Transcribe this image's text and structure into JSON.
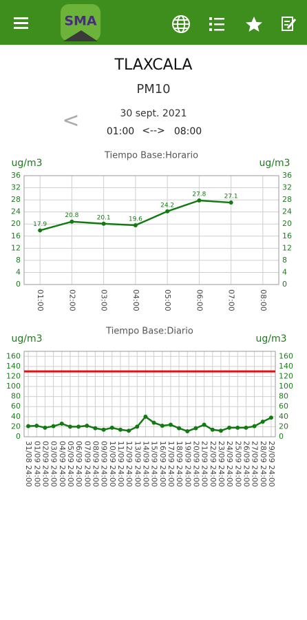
{
  "app_bar": {
    "logo_text": "SMA"
  },
  "station": "TLAXCALA",
  "pollutant": "PM10",
  "prev_button": "<",
  "date": "30 sept. 2021",
  "range": {
    "start": "01:00",
    "separator": "<-->",
    "end": "08:00"
  },
  "chart_data": [
    {
      "type": "line",
      "title": "Tiempo Base:Horario",
      "ylabel": "ug/m3",
      "y2label": "ug/m3",
      "categories": [
        "01:00",
        "02:00",
        "03:00",
        "04:00",
        "05:00",
        "06:00",
        "07:00",
        "08:00"
      ],
      "values": [
        17.9,
        20.8,
        20.1,
        19.6,
        24.2,
        27.8,
        27.1,
        null
      ],
      "color": "#137a13",
      "data_labels": true,
      "grid": true,
      "ylim": [
        0,
        36
      ],
      "yticks": [
        0,
        4,
        8,
        12,
        16,
        20,
        24,
        28,
        32,
        36
      ],
      "y2lim": [
        0,
        36
      ],
      "y2ticks": [
        0,
        4,
        8,
        12,
        16,
        20,
        24,
        28,
        32,
        36
      ]
    },
    {
      "type": "line",
      "title": "Tiempo Base:Diario",
      "ylabel": "ug/m3",
      "y2label": "ug/m3",
      "categories": [
        "31/08 24:00",
        "01/09 24:00",
        "02/09 24:00",
        "03/09 24:00",
        "04/09 24:00",
        "05/09 24:00",
        "06/09 24:00",
        "07/09 24:00",
        "08/09 24:00",
        "09/09 24:00",
        "10/09 24:00",
        "11/09 24:00",
        "12/09 24:00",
        "13/09 24:00",
        "14/09 24:00",
        "15/09 24:00",
        "16/09 24:00",
        "17/09 24:00",
        "18/09 24:00",
        "19/09 24:00",
        "20/09 24:00",
        "21/09 24:00",
        "22/09 24:00",
        "23/09 24:00",
        "24/09 24:00",
        "25/09 24:00",
        "26/09 24:00",
        "27/09 24:00",
        "28/09 24:00",
        "29/09 24:00"
      ],
      "values": [
        21,
        22,
        18,
        21,
        26,
        20,
        20,
        22,
        17,
        14,
        18,
        14,
        12,
        20,
        40,
        28,
        22,
        24,
        17,
        11,
        17,
        24,
        14,
        12,
        18,
        18,
        18,
        21,
        30,
        38
      ],
      "color": "#137a13",
      "data_labels": false,
      "grid": true,
      "reference_line": {
        "value": 130,
        "color": "#e31010"
      },
      "ylim": [
        0,
        170
      ],
      "yticks": [
        0,
        20,
        40,
        60,
        80,
        100,
        120,
        140,
        160
      ],
      "y2lim": [
        0,
        170
      ],
      "y2ticks": [
        0,
        20,
        40,
        60,
        80,
        100,
        120,
        140,
        160
      ]
    }
  ]
}
